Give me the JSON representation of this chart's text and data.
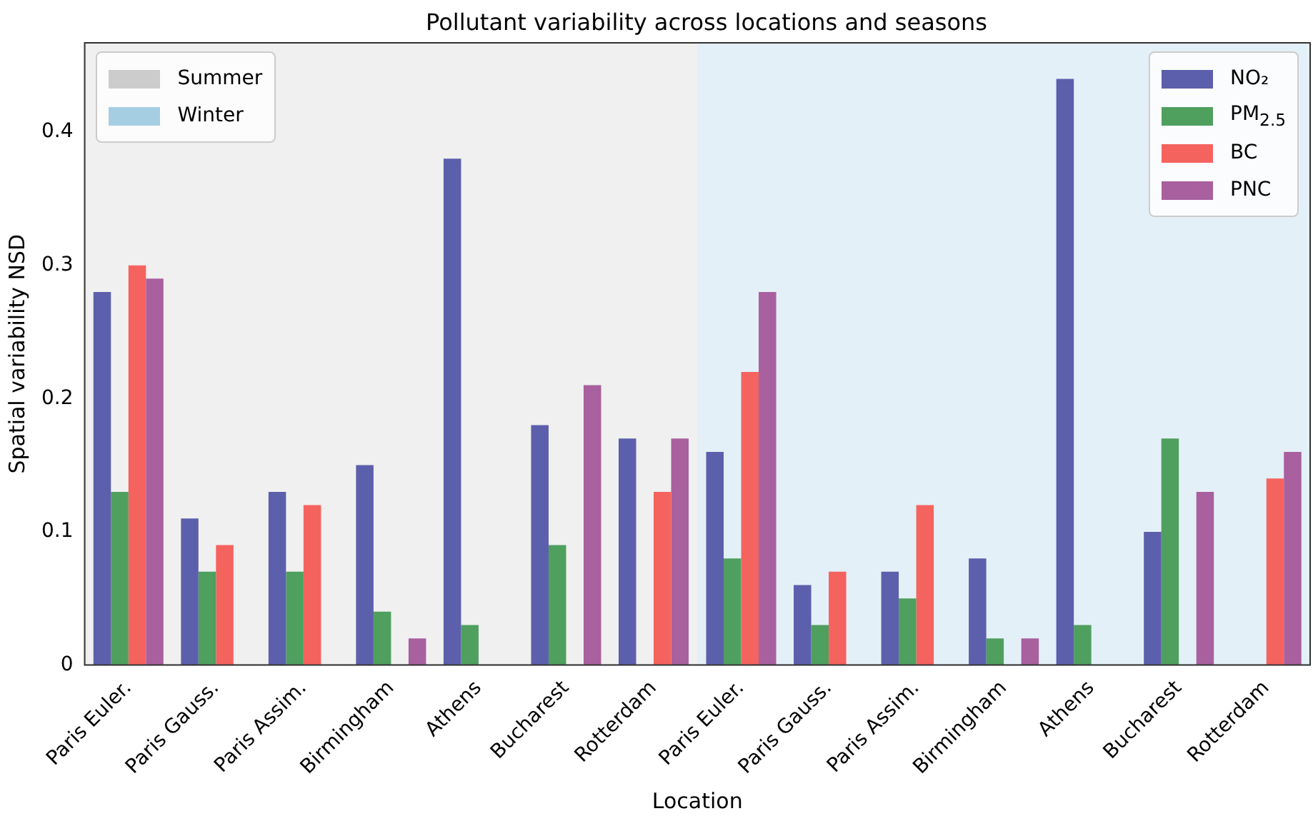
{
  "chart_data": {
    "type": "bar",
    "title": "Pollutant variability across locations and seasons",
    "xlabel": "Location",
    "ylabel": "Spatial variability NSD",
    "categories": [
      "Paris Euler.",
      "Paris Gauss.",
      "Paris Assim.",
      "Birmingham",
      "Athens",
      "Bucharest",
      "Rotterdam",
      "Paris Euler.",
      "Paris Gauss.",
      "Paris Assim.",
      "Birmingham",
      "Athens",
      "Bucharest",
      "Rotterdam"
    ],
    "series": [
      {
        "name": "NO₂",
        "color": "#5c5fab",
        "values": [
          0.28,
          0.11,
          0.13,
          0.15,
          0.38,
          0.18,
          0.17,
          0.16,
          0.06,
          0.07,
          0.08,
          0.44,
          0.1,
          null
        ]
      },
      {
        "name": "PM$_{2.5}$",
        "color": "#4f9f5f",
        "values": [
          0.13,
          0.07,
          0.07,
          0.04,
          0.03,
          0.09,
          null,
          0.08,
          0.03,
          0.05,
          0.02,
          0.03,
          0.17,
          null
        ]
      },
      {
        "name": "BC",
        "color": "#f5635f",
        "values": [
          0.3,
          0.09,
          0.12,
          null,
          null,
          null,
          0.13,
          0.22,
          0.07,
          0.12,
          null,
          null,
          null,
          0.14
        ]
      },
      {
        "name": "PNC",
        "color": "#a8609f",
        "values": [
          0.29,
          null,
          null,
          0.02,
          null,
          0.21,
          0.17,
          0.28,
          null,
          null,
          0.02,
          null,
          0.13,
          0.16
        ]
      }
    ],
    "annotations": [
      "Summer",
      "Winter"
    ],
    "ylim": [
      0,
      0.467
    ],
    "yticks": [
      0,
      0.1,
      0.2,
      0.3,
      0.4
    ],
    "grid": false,
    "legend": "top right"
  }
}
